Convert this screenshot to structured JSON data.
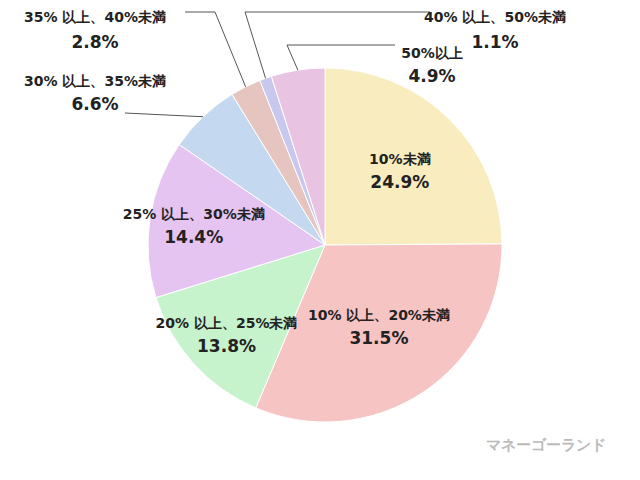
{
  "chart_data": {
    "type": "pie",
    "categories": [
      "10%未満",
      "10% 以上、20%未満",
      "20% 以上、25%未満",
      "25% 以上、30%未満",
      "30% 以上、35%未満",
      "35% 以上、40%未満",
      "40% 以上、50%未満",
      "50%以上"
    ],
    "values": [
      24.9,
      31.5,
      13.8,
      14.4,
      6.6,
      2.8,
      1.1,
      4.9
    ],
    "value_labels": [
      "24.9%",
      "31.5%",
      "13.8%",
      "14.4%",
      "6.6%",
      "2.8%",
      "1.1%",
      "4.9%"
    ],
    "colors": [
      "#f9edc0",
      "#f7c4c4",
      "#c6f2cc",
      "#e6c4f2",
      "#c4d8ef",
      "#e6c4c0",
      "#c8c8ef",
      "#e8c4e2"
    ],
    "data_labels": true,
    "annotations": [
      "マネーゴーランド"
    ]
  }
}
